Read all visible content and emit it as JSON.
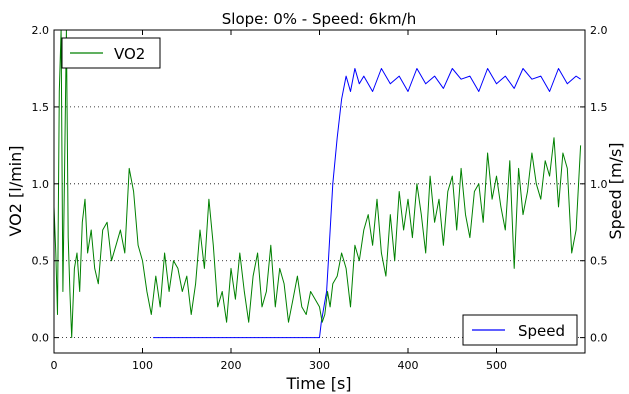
{
  "chart_data": {
    "type": "line",
    "title": "Slope: 0% - Speed: 6km/h",
    "xlabel": "Time [s]",
    "ylabel_left": "VO2 [l/min]",
    "ylabel_right": "Speed [m/s]",
    "xlim": [
      0,
      600
    ],
    "ylim_left": [
      -0.1,
      2.0
    ],
    "ylim_right": [
      -0.1,
      2.0
    ],
    "xticks": [
      "0",
      "100",
      "200",
      "300",
      "400",
      "500"
    ],
    "xtick_values": [
      0,
      100,
      200,
      300,
      400,
      500
    ],
    "yticks_left": [
      "0.0",
      "0.5",
      "1.0",
      "1.5",
      "2.0"
    ],
    "yticks_right": [
      "0.0",
      "0.5",
      "1.0",
      "1.5",
      "2.0"
    ],
    "ytick_values": [
      0,
      0.5,
      1.0,
      1.5,
      2.0
    ],
    "grid": "horizontal dotted",
    "legend_left": "top-left",
    "legend_right": "bottom-right",
    "series": [
      {
        "name": "VO2",
        "axis": "left",
        "color": "#008000",
        "x": [
          0,
          2,
          4,
          6,
          8,
          10,
          12,
          14,
          16,
          18,
          20,
          23,
          26,
          29,
          32,
          35,
          38,
          42,
          46,
          50,
          55,
          60,
          65,
          70,
          75,
          80,
          85,
          90,
          95,
          100,
          105,
          110,
          115,
          120,
          125,
          130,
          135,
          140,
          145,
          150,
          155,
          160,
          165,
          170,
          175,
          180,
          185,
          190,
          195,
          200,
          205,
          210,
          215,
          220,
          225,
          230,
          235,
          240,
          245,
          250,
          255,
          260,
          265,
          270,
          275,
          280,
          285,
          290,
          295,
          300,
          303,
          306,
          309,
          312,
          315,
          320,
          325,
          330,
          335,
          340,
          345,
          350,
          355,
          360,
          365,
          370,
          375,
          380,
          385,
          390,
          395,
          400,
          405,
          410,
          415,
          420,
          425,
          430,
          435,
          440,
          445,
          450,
          455,
          460,
          465,
          470,
          475,
          480,
          485,
          490,
          495,
          500,
          505,
          510,
          515,
          520,
          525,
          530,
          535,
          540,
          545,
          550,
          555,
          560,
          565,
          570,
          575,
          580,
          585,
          590,
          595
        ],
        "y": [
          0.85,
          0.55,
          0.15,
          1.6,
          2.0,
          0.3,
          1.1,
          2.0,
          0.65,
          0.3,
          0.0,
          0.45,
          0.55,
          0.3,
          0.75,
          0.9,
          0.55,
          0.7,
          0.45,
          0.35,
          0.7,
          0.75,
          0.5,
          0.6,
          0.7,
          0.55,
          1.1,
          0.95,
          0.6,
          0.5,
          0.3,
          0.15,
          0.4,
          0.2,
          0.55,
          0.3,
          0.5,
          0.45,
          0.3,
          0.4,
          0.15,
          0.35,
          0.7,
          0.45,
          0.9,
          0.6,
          0.2,
          0.3,
          0.1,
          0.45,
          0.25,
          0.55,
          0.3,
          0.1,
          0.4,
          0.55,
          0.2,
          0.3,
          0.6,
          0.2,
          0.45,
          0.35,
          0.1,
          0.25,
          0.4,
          0.2,
          0.15,
          0.3,
          0.25,
          0.2,
          0.1,
          0.15,
          0.3,
          0.2,
          0.35,
          0.4,
          0.55,
          0.45,
          0.2,
          0.6,
          0.5,
          0.7,
          0.8,
          0.6,
          0.9,
          0.55,
          0.4,
          0.8,
          0.5,
          0.95,
          0.7,
          0.9,
          0.65,
          1.0,
          0.8,
          0.55,
          1.05,
          0.75,
          0.9,
          0.6,
          0.95,
          1.05,
          0.7,
          1.1,
          0.8,
          0.65,
          0.95,
          1.0,
          0.75,
          1.2,
          0.9,
          1.05,
          0.85,
          0.7,
          1.15,
          0.45,
          1.1,
          0.8,
          0.95,
          1.2,
          1.0,
          0.9,
          1.15,
          1.05,
          1.3,
          0.85,
          1.2,
          1.1,
          0.55,
          0.7,
          1.25
        ]
      },
      {
        "name": "Speed",
        "axis": "right",
        "color": "#0000ff",
        "x": [
          112,
          120,
          130,
          140,
          150,
          160,
          170,
          180,
          190,
          200,
          210,
          220,
          230,
          240,
          250,
          260,
          270,
          280,
          290,
          295,
          300,
          302,
          305,
          308,
          310,
          315,
          320,
          325,
          330,
          335,
          340,
          345,
          350,
          360,
          370,
          380,
          390,
          400,
          410,
          420,
          430,
          440,
          450,
          460,
          470,
          480,
          490,
          500,
          510,
          520,
          530,
          540,
          550,
          560,
          570,
          580,
          590,
          595
        ],
        "y": [
          0.0,
          0.0,
          0.0,
          0.0,
          0.0,
          0.0,
          0.0,
          0.0,
          0.0,
          0.0,
          0.0,
          0.0,
          0.0,
          0.0,
          0.0,
          0.0,
          0.0,
          0.0,
          0.0,
          0.0,
          0.0,
          0.1,
          0.2,
          0.3,
          0.5,
          1.0,
          1.3,
          1.55,
          1.7,
          1.6,
          1.75,
          1.65,
          1.7,
          1.6,
          1.75,
          1.65,
          1.7,
          1.6,
          1.75,
          1.65,
          1.7,
          1.62,
          1.75,
          1.68,
          1.7,
          1.6,
          1.75,
          1.65,
          1.7,
          1.62,
          1.75,
          1.68,
          1.7,
          1.6,
          1.75,
          1.65,
          1.7,
          1.68
        ]
      }
    ]
  }
}
